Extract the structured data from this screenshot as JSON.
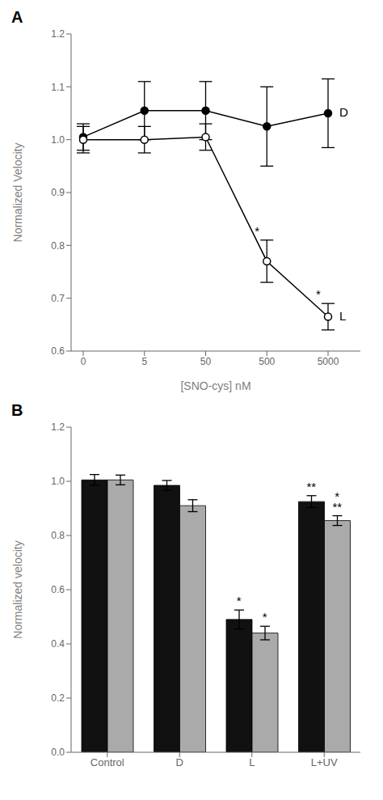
{
  "chart_data": [
    {
      "type": "line",
      "title": "A",
      "xlabel": "[SNO-cys] nM",
      "ylabel": "Normalized Velocity",
      "categories": [
        "0",
        "5",
        "50",
        "500",
        "5000"
      ],
      "ylim": [
        0.6,
        1.2
      ],
      "yticks": [
        0.6,
        0.7,
        0.8,
        0.9,
        {
          "value": 1.0,
          "label": "1.0"
        },
        1.1,
        1.2
      ],
      "series": [
        {
          "name": "D",
          "color": "#000000",
          "marker": "circle",
          "values": [
            1.005,
            1.055,
            1.055,
            1.025,
            1.05
          ],
          "yerr": [
            0.025,
            0.055,
            0.055,
            0.075,
            0.065
          ]
        },
        {
          "name": "L",
          "color": "#000000",
          "marker": "circle_open",
          "values": [
            1.0,
            1.0,
            1.005,
            0.77,
            0.665
          ],
          "yerr": [
            0.025,
            0.025,
            0.025,
            0.04,
            0.025
          ],
          "annotations": [
            {
              "category": "500",
              "text": "*"
            },
            {
              "category": "5000",
              "text": "*"
            }
          ]
        }
      ]
    },
    {
      "type": "bar",
      "title": "B",
      "ylabel": "Normalized velocity",
      "categories": [
        "Control",
        "D",
        "L",
        "L+UV"
      ],
      "ylim": [
        0.0,
        1.2
      ],
      "yticks": [
        {
          "value": 0.0,
          "label": "0.0"
        },
        0.2,
        0.4,
        0.6,
        0.8,
        {
          "value": 1.0,
          "label": "1.0"
        },
        1.2
      ],
      "series": [
        {
          "color": "#111111",
          "values": [
            1.005,
            0.985,
            0.49,
            0.925
          ],
          "yerr": [
            0.02,
            0.018,
            0.035,
            0.022
          ],
          "annotations": [
            {
              "category": "L",
              "text": "*"
            },
            {
              "category": "L+UV",
              "text": "**"
            }
          ]
        },
        {
          "color": "#aaaaaa",
          "values": [
            1.005,
            0.91,
            0.44,
            0.855
          ],
          "yerr": [
            0.018,
            0.022,
            0.025,
            0.018
          ],
          "annotations": [
            {
              "category": "L",
              "text": "*"
            },
            {
              "category": "L+UV",
              "text": "**"
            },
            {
              "category": "L+UV",
              "text": "*"
            }
          ]
        }
      ]
    }
  ]
}
